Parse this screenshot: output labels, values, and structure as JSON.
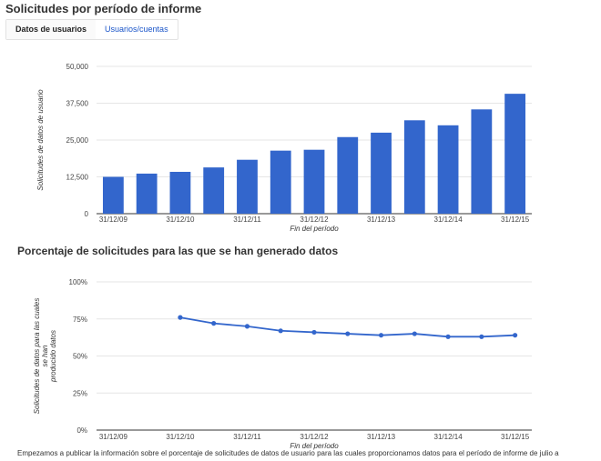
{
  "page": {
    "title": "Solicitudes por período de informe",
    "tabs": [
      {
        "label": "Datos de usuarios",
        "active": true
      },
      {
        "label": "Usuarios/cuentas",
        "active": false
      }
    ],
    "footer_text": "Empezamos a publicar la información sobre el porcentaje de solicitudes de datos de usuario para las cuales proporcionamos datos para el período de informe de julio a"
  },
  "colors": {
    "bar": "#3366cc",
    "line": "#3366cc",
    "grid": "#e6e6e6",
    "axis": "#333333"
  },
  "chart_data": [
    {
      "type": "bar",
      "title": "",
      "ylabel": "Solicitudes de datos de usuario",
      "xlabel": "Fin del período",
      "ylim": [
        0,
        50000
      ],
      "yticks": [
        "0",
        "12,500",
        "25,000",
        "37,500",
        "50,000"
      ],
      "xtick_labels": [
        "31/12/09",
        "31/12/10",
        "31/12/11",
        "31/12/12",
        "31/12/13",
        "31/12/14",
        "31/12/15"
      ],
      "values": [
        12500,
        13600,
        14200,
        15700,
        18300,
        21400,
        21700,
        26000,
        27500,
        31700,
        30000,
        35400,
        40700
      ],
      "grid": true
    },
    {
      "type": "line",
      "title": "Porcentaje de solicitudes para las que se han generado datos",
      "ylabel": "Solicitudes de datos para las cuales se han producido datos",
      "xlabel": "Fin del período",
      "ylim": [
        0,
        100
      ],
      "yticks": [
        "0%",
        "25%",
        "50%",
        "75%",
        "100%"
      ],
      "xtick_labels": [
        "31/12/09",
        "31/12/10",
        "31/12/11",
        "31/12/12",
        "31/12/13",
        "31/12/14",
        "31/12/15"
      ],
      "values": [
        null,
        null,
        76,
        72,
        70,
        67,
        66,
        65,
        64,
        65,
        63,
        63,
        64
      ],
      "grid": true
    }
  ]
}
